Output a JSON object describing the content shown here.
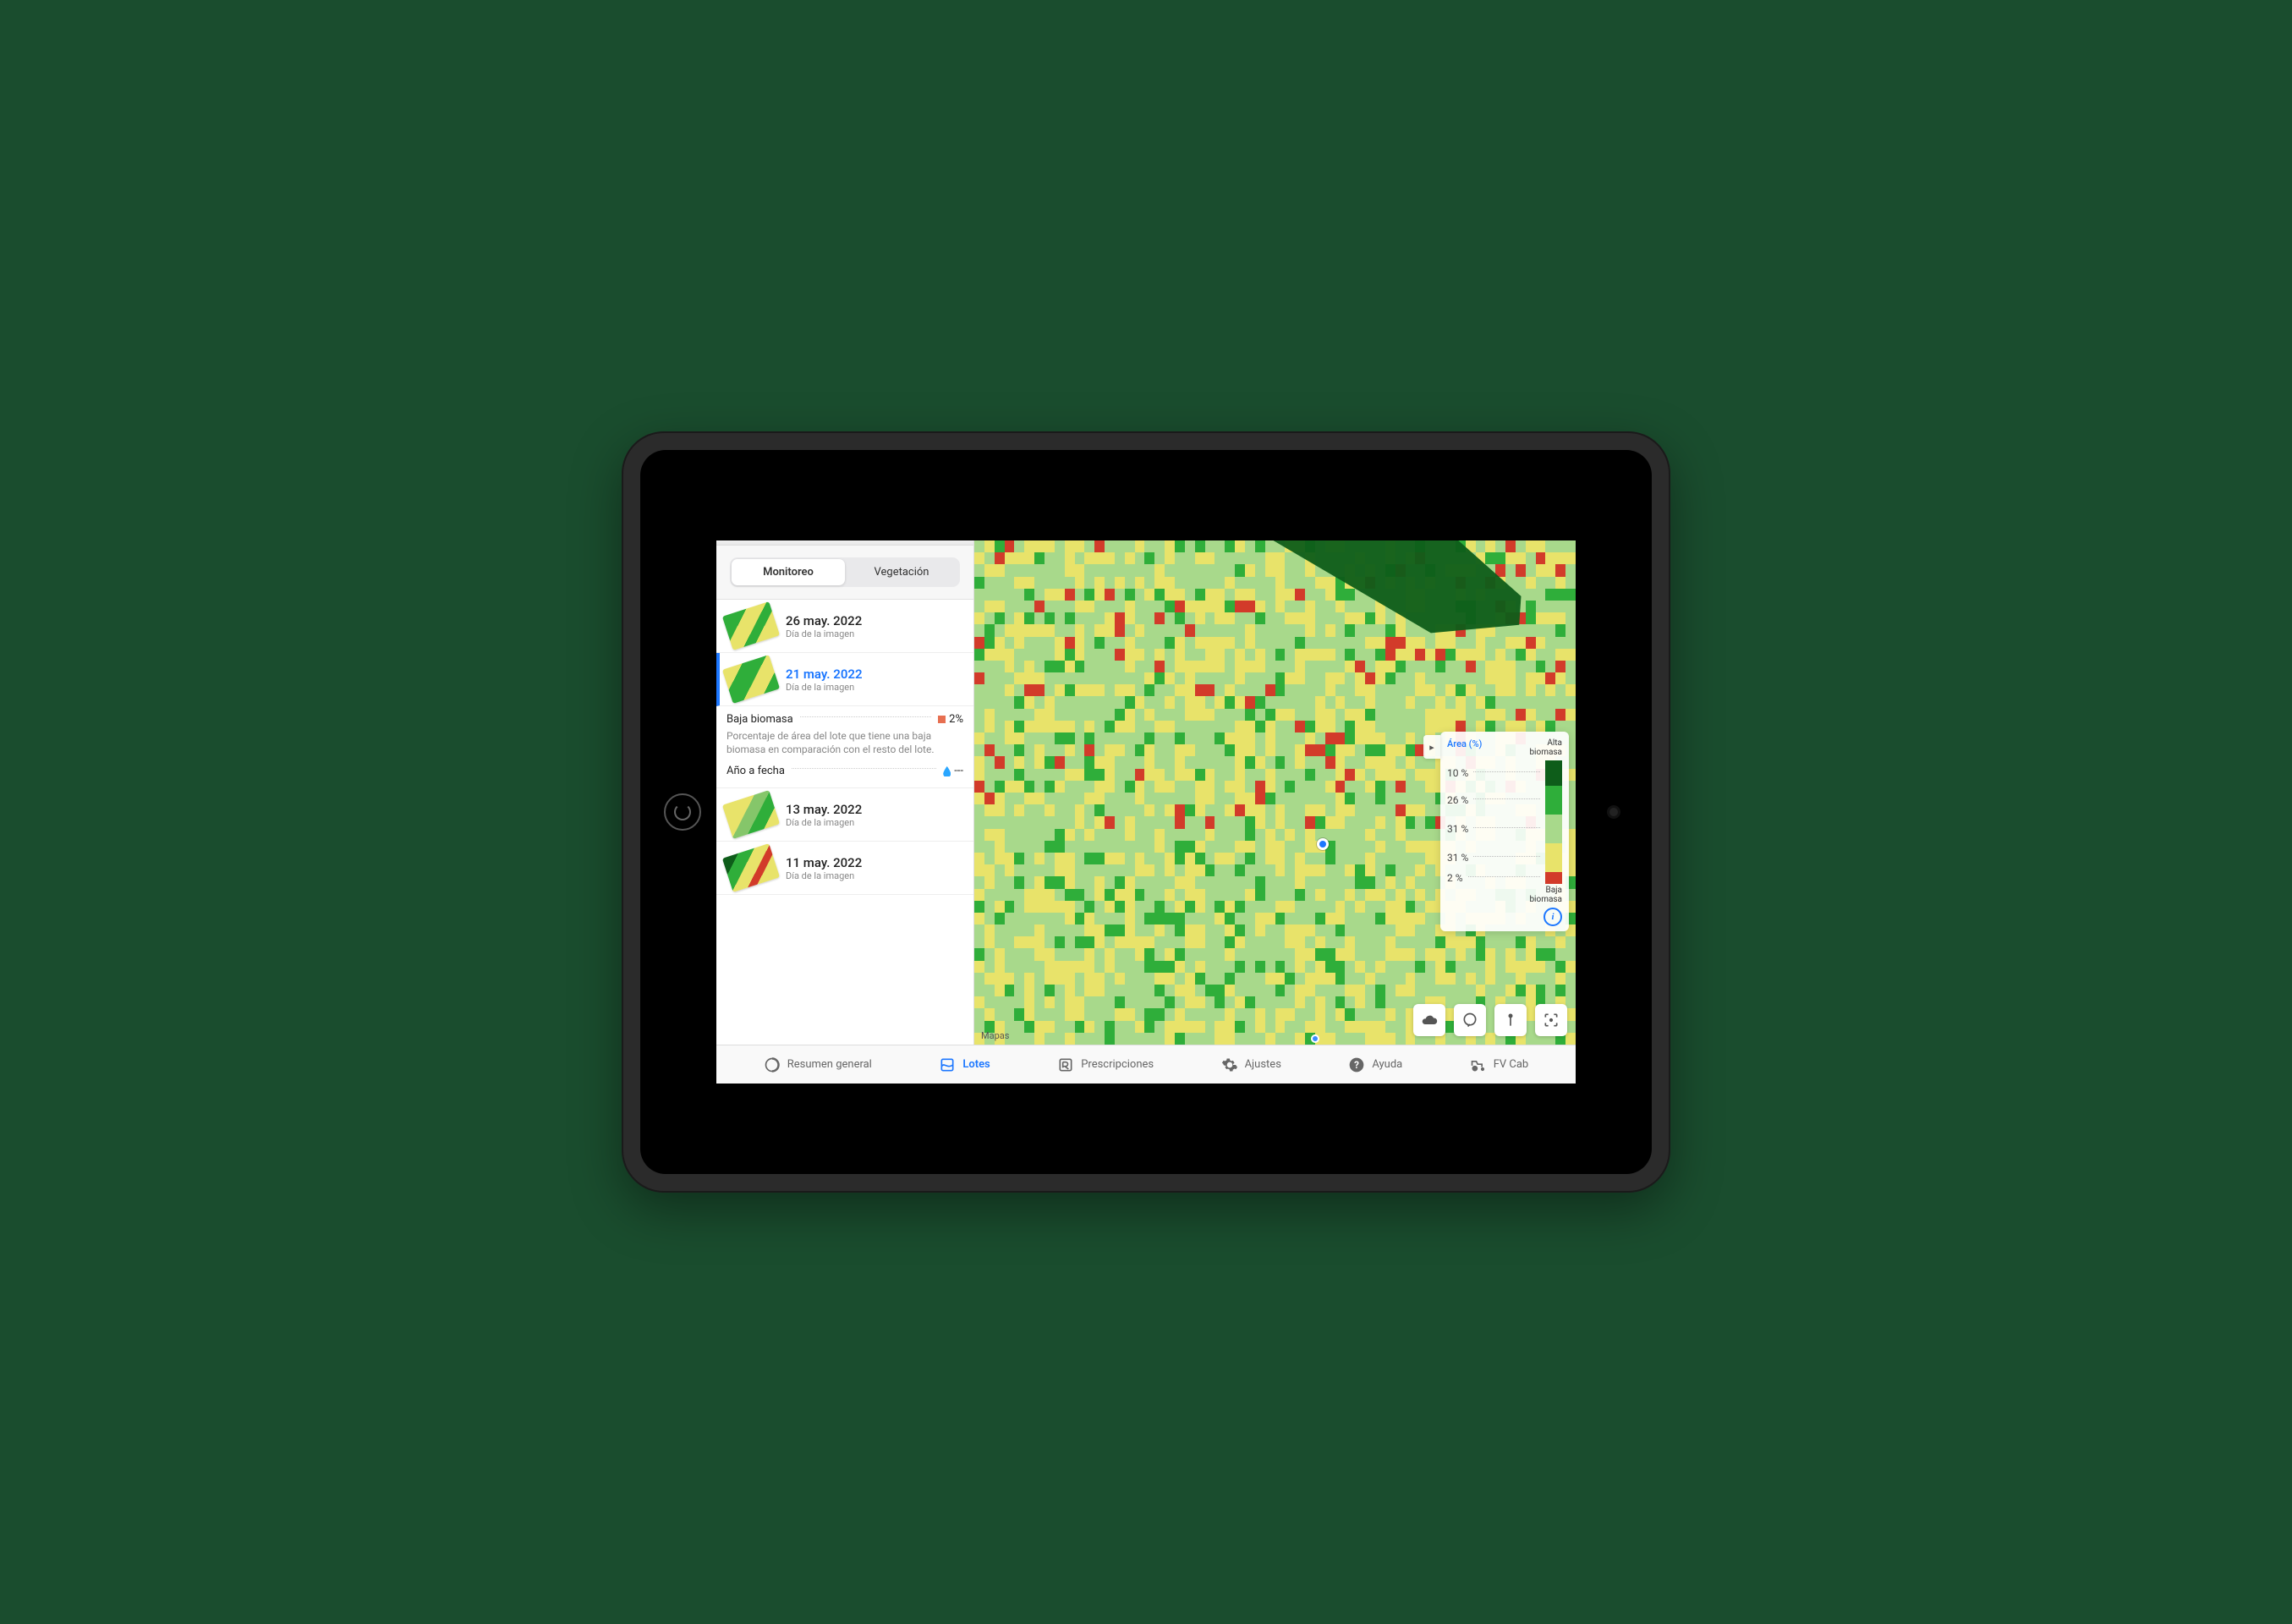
{
  "device": {
    "type": "ipad",
    "orientation": "landscape"
  },
  "segmented": {
    "options": [
      "Monitoreo",
      "Vegetación"
    ],
    "active_index": 0
  },
  "dates": {
    "subtitle": "Día de la imagen",
    "items": [
      {
        "date": "26 may. 2022",
        "selected": false,
        "thumb_gradient": "linear-gradient(135deg,#2fae3a 0 30%,#e8e36a 30% 55%,#2fae3a 55% 70%,#e8e36a 70% 100%)"
      },
      {
        "date": "21 may. 2022",
        "selected": true,
        "thumb_gradient": "linear-gradient(135deg,#e8e36a 0 25%,#2fae3a 25% 55%,#e8e36a 55% 80%,#2fae3a 80% 100%)"
      },
      {
        "date": "13 may. 2022",
        "selected": false,
        "thumb_gradient": "linear-gradient(135deg,#e8e36a 0 40%,#85c66a 40% 60%,#2fae3a 60% 80%,#e8e36a 80% 100%)"
      },
      {
        "date": "11 may. 2022",
        "selected": false,
        "thumb_gradient": "linear-gradient(135deg,#0e5d1a 0 20%,#2fae3a 20% 40%,#e8e36a 40% 60%,#d23b2a 60% 72%,#e8e36a 72% 100%)"
      }
    ]
  },
  "selected_detail": {
    "biomass_label": "Baja biomasa",
    "biomass_marker_color": "#e76f51",
    "biomass_value": "2%",
    "biomass_desc": "Porcentaje de área del lote que tiene una baja biomasa en comparación con el resto del lote.",
    "ytd_label": "Año a fecha",
    "ytd_value": "---"
  },
  "map": {
    "attribution": "Mapas",
    "raster": {
      "rows": 42,
      "cols": 60,
      "palette": {
        "dark_green": "#0e5d1a",
        "green": "#2fae3a",
        "light_green": "#a8d98b",
        "yellow": "#e8e36a",
        "red": "#d23b2a"
      }
    }
  },
  "legend": {
    "area_label": "Área (%)",
    "high_label": "Alta\nbiomasa",
    "low_label": "Baja\nbiomasa",
    "buckets": [
      {
        "pct": "10 %",
        "color": "#0e5d1a",
        "height": 30
      },
      {
        "pct": "26 %",
        "color": "#2fae3a",
        "height": 34
      },
      {
        "pct": "31 %",
        "color": "#a8d98b",
        "height": 34
      },
      {
        "pct": "31 %",
        "color": "#e8e36a",
        "height": 34
      },
      {
        "pct": "2 %",
        "color": "#d23b2a",
        "height": 14
      }
    ]
  },
  "map_controls": [
    {
      "name": "cloud-icon"
    },
    {
      "name": "chat-icon"
    },
    {
      "name": "pin-icon"
    },
    {
      "name": "locate-icon"
    }
  ],
  "bottom_nav": {
    "items": [
      {
        "name": "nav-overview",
        "label": "Resumen general",
        "icon": "overview",
        "active": false
      },
      {
        "name": "nav-lots",
        "label": "Lotes",
        "icon": "lots",
        "active": true
      },
      {
        "name": "nav-prescriptions",
        "label": "Prescripciones",
        "icon": "prescriptions",
        "active": false
      },
      {
        "name": "nav-settings",
        "label": "Ajustes",
        "icon": "settings",
        "active": false
      },
      {
        "name": "nav-help",
        "label": "Ayuda",
        "icon": "help",
        "active": false
      },
      {
        "name": "nav-fvcab",
        "label": "FV Cab",
        "icon": "tractor",
        "active": false
      }
    ]
  }
}
